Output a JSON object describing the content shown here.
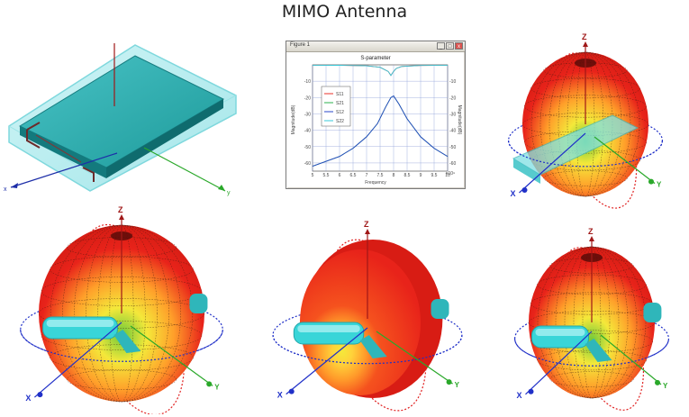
{
  "title": "MIMO Antenna",
  "window": {
    "title": "Figure 1",
    "buttons": {
      "minimize": "_",
      "maximize": "□",
      "close": "x"
    }
  },
  "chart_data": {
    "type": "line",
    "title": "S-parameter",
    "xlabel": "Frequency",
    "ylabel": "Magnitude(dB)",
    "ylabel_right": "Magnitude(dB)",
    "x_exponent": "x10⁹",
    "xlim": [
      5,
      10
    ],
    "ylim": [
      -65,
      0
    ],
    "x_ticks": [
      "5",
      "5.5",
      "6",
      "6.5",
      "7",
      "7.5",
      "8",
      "8.5",
      "9",
      "9.5",
      "10"
    ],
    "y_ticks": [
      "-10",
      "-20",
      "-30",
      "-40",
      "-50",
      "-60"
    ],
    "grid": true,
    "legend_position": "upper-left",
    "series": [
      {
        "name": "S11",
        "color": "#e8302a",
        "x": [
          5,
          6,
          7,
          7.5,
          7.8,
          7.9,
          8,
          8.1,
          8.3,
          9,
          10
        ],
        "y": [
          -0.2,
          -0.3,
          -0.6,
          -1.5,
          -4,
          -6.5,
          -4,
          -2.2,
          -1,
          -0.4,
          -0.2
        ]
      },
      {
        "name": "S21",
        "color": "#2bb24c",
        "x": [
          5,
          6,
          6.5,
          7,
          7.4,
          7.7,
          7.9,
          8,
          8.2,
          8.5,
          9,
          9.5,
          10
        ],
        "y": [
          -62,
          -56,
          -51,
          -44,
          -36,
          -26,
          -20,
          -19,
          -24,
          -33,
          -44,
          -51,
          -56
        ]
      },
      {
        "name": "S12",
        "color": "#2747c8",
        "x": [
          5,
          6,
          6.5,
          7,
          7.4,
          7.7,
          7.9,
          8,
          8.2,
          8.5,
          9,
          9.5,
          10
        ],
        "y": [
          -62,
          -56,
          -51,
          -44,
          -36,
          -26,
          -20,
          -19,
          -24,
          -33,
          -44,
          -51,
          -56
        ]
      },
      {
        "name": "S22",
        "color": "#35c9d9",
        "x": [
          5,
          6,
          7,
          7.5,
          7.8,
          7.9,
          8,
          8.1,
          8.3,
          9,
          10
        ],
        "y": [
          -0.2,
          -0.3,
          -0.6,
          -1.5,
          -4,
          -6.5,
          -4,
          -2.2,
          -1,
          -0.4,
          -0.2
        ]
      }
    ]
  },
  "axes": {
    "x": "x",
    "y": "y",
    "z": "z"
  },
  "patterns": [
    {
      "id": "pattern-top-right",
      "axes": {
        "x": "X",
        "y": "Y",
        "z": "Z"
      }
    },
    {
      "id": "pattern-bottom-left",
      "axes": {
        "x": "X",
        "y": "Y",
        "z": "Z"
      }
    },
    {
      "id": "pattern-bottom-center",
      "axes": {
        "x": "X",
        "y": "Y",
        "z": "Z"
      }
    },
    {
      "id": "pattern-bottom-right",
      "axes": {
        "x": "X",
        "y": "Y",
        "z": "Z"
      }
    }
  ],
  "colors": {
    "board": "#1d9a9a",
    "board_edge": "#8fe6ea",
    "red": "#e8231a",
    "yellow": "#f4e83a",
    "green": "#6cc83a",
    "cyan": "#39d5d8",
    "dotted_red": "#e02020",
    "dotted_blue": "#2030c8"
  }
}
